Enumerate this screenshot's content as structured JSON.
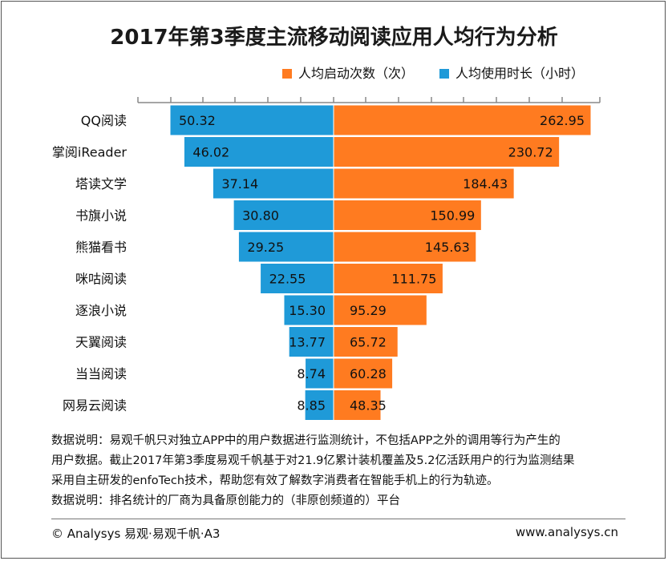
{
  "chart_data": {
    "type": "bar",
    "title": "2017年第3季度主流移动阅读应用人均行为分析",
    "categories": [
      "QQ阅读",
      "掌阅iReader",
      "塔读文学",
      "书旗小说",
      "熊猫看书",
      "咪咕阅读",
      "逐浪小说",
      "天翼阅读",
      "当当阅读",
      "网易云阅读"
    ],
    "series": [
      {
        "name": "人均使用时长（小时）",
        "color": "#1f9ad8",
        "side": "left",
        "values": [
          50.32,
          46.02,
          37.14,
          30.8,
          29.25,
          22.55,
          15.3,
          13.77,
          8.74,
          8.85
        ],
        "labels": [
          "50.32",
          "46.02",
          "37.14",
          "30.80",
          "29.25",
          "22.55",
          "15.30",
          "13.77",
          "8.74",
          "8.85"
        ]
      },
      {
        "name": "人均启动次数（次）",
        "color": "#ff7b20",
        "side": "right",
        "values": [
          262.95,
          230.72,
          184.43,
          150.99,
          145.63,
          111.75,
          95.29,
          65.72,
          60.28,
          48.35
        ],
        "labels": [
          "262.95",
          "230.72",
          "184.43",
          "150.99",
          "145.63",
          "111.75",
          "95.29",
          "65.72",
          "60.28",
          "48.35"
        ]
      }
    ],
    "legend_position": "top-right",
    "grid": false
  },
  "legend": [
    {
      "label": "人均启动次数（次）",
      "color": "#ff7b20"
    },
    {
      "label": "人均使用时长（小时）",
      "color": "#1f9ad8"
    }
  ],
  "notes": [
    "数据说明：易观千帆只对独立APP中的用户数据进行监测统计，不包括APP之外的调用等行为产生的",
    "用户数据。截止2017年第3季度易观千帆基于对21.9亿累计装机覆盖及5.2亿活跃用户的行为监测结果",
    "采用自主研发的enfoTech技术，帮助您有效了解数字消费者在智能手机上的行为轨迹。",
    "数据说明：排名统计的厂商为具备原创能力的（非原创频道的）平台"
  ],
  "footer": {
    "copyright": "© Analysys 易观·易观千帆·A3",
    "website": "www.analysys.cn"
  }
}
